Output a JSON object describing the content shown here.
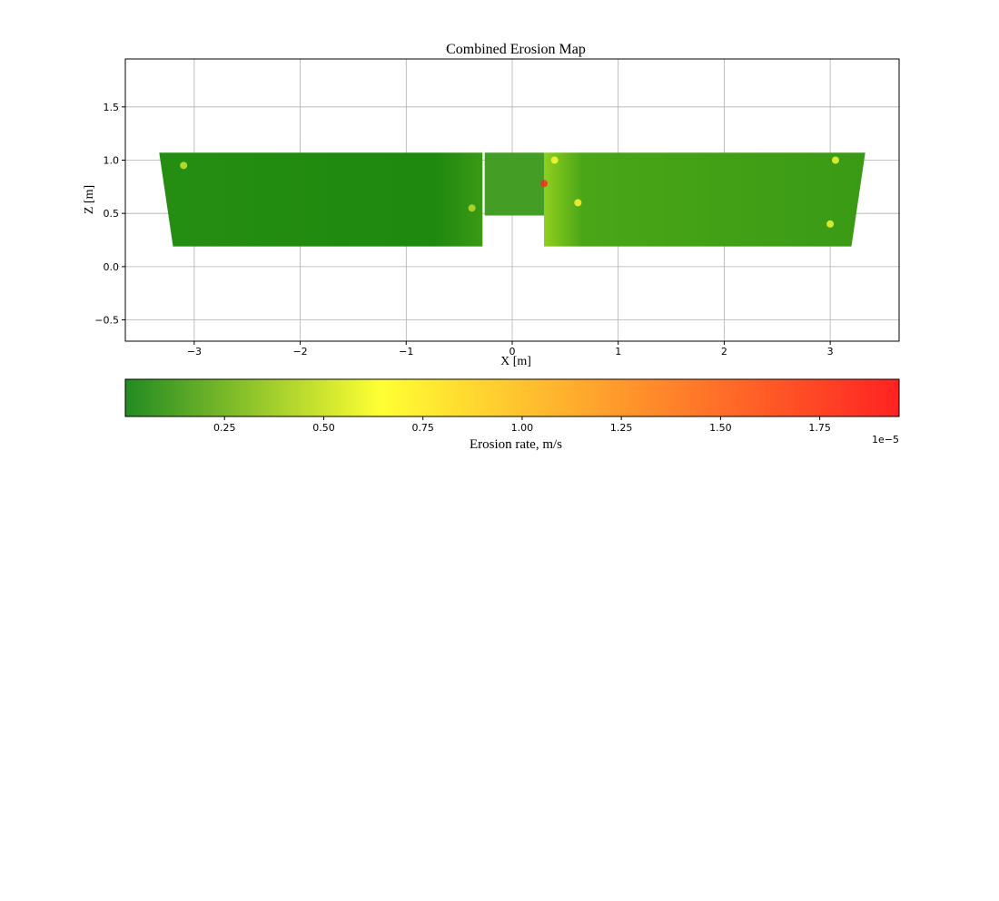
{
  "chart_data": {
    "type": "heatmap",
    "title": "Combined Erosion Map",
    "xlabel": "X [m]",
    "ylabel": "Z [m]",
    "xlim": [
      -3.65,
      3.65
    ],
    "ylim": [
      -0.7,
      1.95
    ],
    "x_ticks": [
      -3,
      -2,
      -1,
      0,
      1,
      2,
      3
    ],
    "x_tick_labels": [
      "−3",
      "−2",
      "−1",
      "0",
      "1",
      "2",
      "3"
    ],
    "y_ticks": [
      -0.5,
      0.0,
      0.5,
      1.0,
      1.5
    ],
    "y_tick_labels": [
      "−0.5",
      "0.0",
      "0.5",
      "1.0",
      "1.5"
    ],
    "grid": true,
    "regions": [
      {
        "x": [
          -3.33,
          -0.28,
          -0.28,
          -3.2
        ],
        "z": [
          1.07,
          1.07,
          0.19,
          0.19
        ],
        "dominant_rate": 0.05
      },
      {
        "x": [
          -0.26,
          0.3,
          0.3,
          -0.26
        ],
        "z": [
          1.07,
          1.07,
          0.48,
          0.48
        ],
        "dominant_rate": 0.1
      },
      {
        "x": [
          0.3,
          3.33,
          3.2,
          0.3
        ],
        "z": [
          1.07,
          1.07,
          0.19,
          0.19
        ],
        "dominant_rate": 0.2
      }
    ],
    "hotspots": [
      {
        "x": 0.3,
        "z": 0.78,
        "rate": 1.9
      },
      {
        "x": 0.4,
        "z": 1.0,
        "rate": 0.7
      },
      {
        "x": 0.62,
        "z": 0.6,
        "rate": 0.7
      },
      {
        "x": 3.05,
        "z": 1.0,
        "rate": 0.6
      },
      {
        "x": 3.0,
        "z": 0.4,
        "rate": 0.6
      },
      {
        "x": -3.1,
        "z": 0.95,
        "rate": 0.5
      },
      {
        "x": -0.38,
        "z": 0.55,
        "rate": 0.45
      }
    ],
    "colorbar": {
      "label": "Erosion rate, m/s",
      "range": [
        0.0,
        1.95
      ],
      "ticks": [
        0.25,
        0.5,
        0.75,
        1.0,
        1.25,
        1.5,
        1.75
      ],
      "tick_labels": [
        "0.25",
        "0.50",
        "0.75",
        "1.00",
        "1.25",
        "1.50",
        "1.75"
      ],
      "offset_text": "1e−5",
      "colors": [
        "#228b22",
        "#ffff33",
        "#ff2222"
      ]
    }
  }
}
